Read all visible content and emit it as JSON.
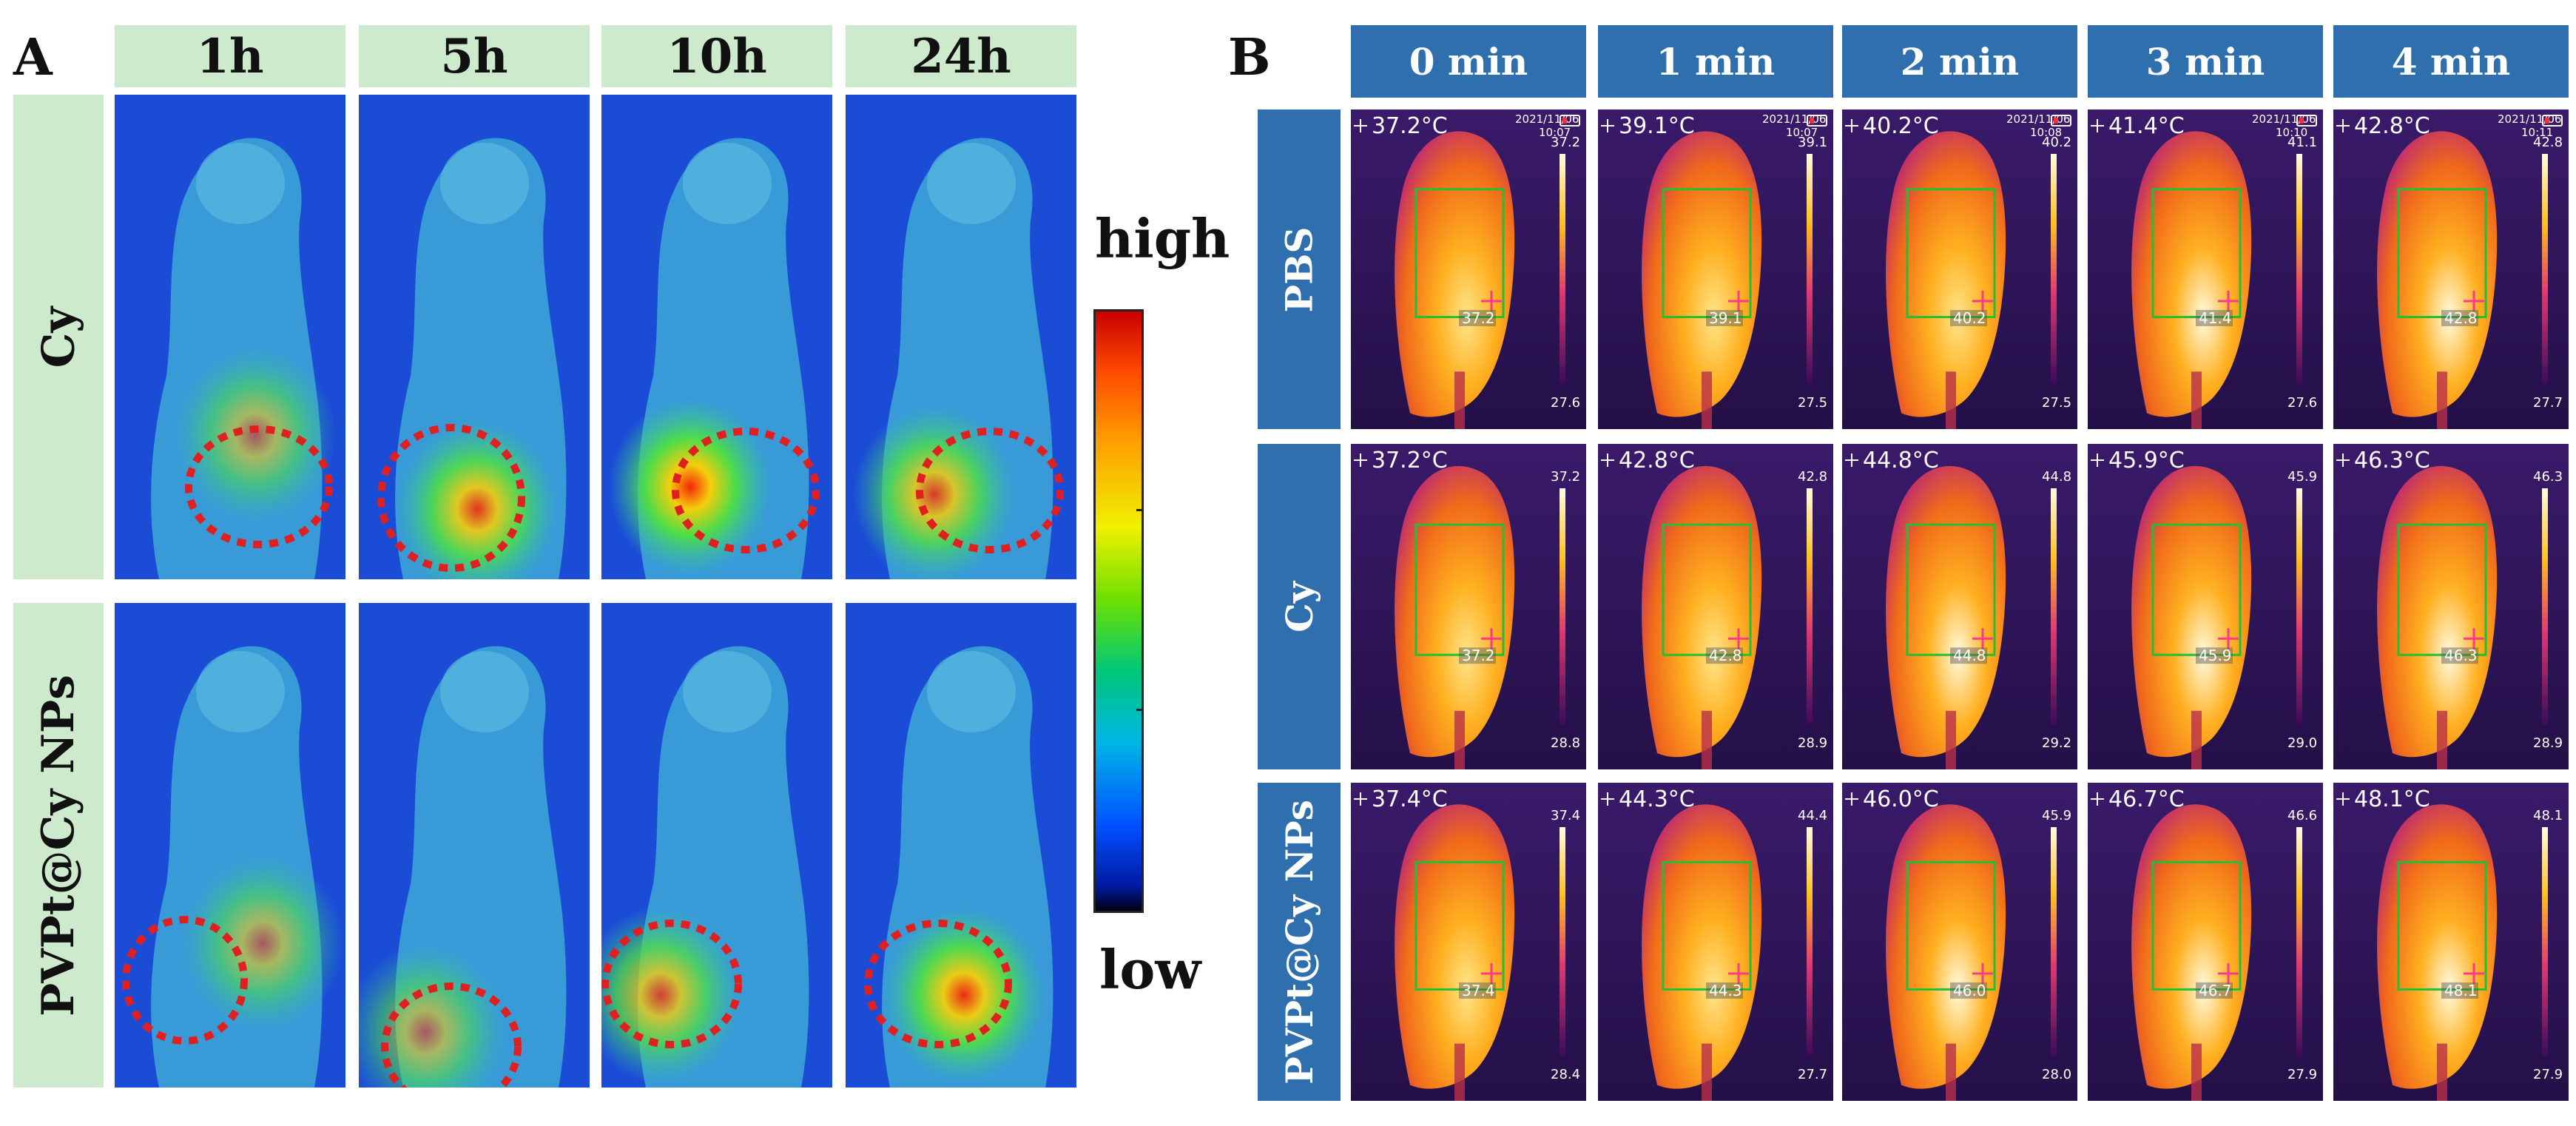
{
  "panel_a": {
    "letter": "A",
    "time_points": [
      "1h",
      "5h",
      "10h",
      "24h"
    ],
    "groups": [
      "Cy",
      "PVPt@Cy NPs"
    ],
    "scale": {
      "high": "high",
      "low": "low"
    }
  },
  "panel_b": {
    "letter": "B",
    "time_points": [
      "0 min",
      "1 min",
      "2 min",
      "3 min",
      "4 min"
    ],
    "groups": [
      {
        "name": "PBS",
        "cells": [
          {
            "readout": "37.2°C",
            "date": "2021/11/06",
            "time": "10:07",
            "max": "37.2",
            "min": "27.6",
            "spot": "37.2"
          },
          {
            "readout": "39.1°C",
            "date": "2021/11/06",
            "time": "10:07",
            "max": "39.1",
            "min": "27.5",
            "spot": "39.1"
          },
          {
            "readout": "40.2°C",
            "date": "2021/11/06",
            "time": "10:08",
            "max": "40.2",
            "min": "27.5",
            "spot": "40.2"
          },
          {
            "readout": "41.4°C",
            "date": "2021/11/06",
            "time": "10:10",
            "max": "41.1",
            "min": "27.6",
            "spot": "41.4"
          },
          {
            "readout": "42.8°C",
            "date": "2021/11/06",
            "time": "10:11",
            "max": "42.8",
            "min": "27.7",
            "spot": "42.8"
          }
        ]
      },
      {
        "name": "Cy",
        "cells": [
          {
            "readout": "37.2°C",
            "max": "37.2",
            "min": "28.8",
            "spot": "37.2"
          },
          {
            "readout": "42.8°C",
            "max": "42.8",
            "min": "28.9",
            "spot": "42.8"
          },
          {
            "readout": "44.8°C",
            "max": "44.8",
            "min": "29.2",
            "spot": "44.8"
          },
          {
            "readout": "45.9°C",
            "max": "45.9",
            "min": "29.0",
            "spot": "45.9"
          },
          {
            "readout": "46.3°C",
            "max": "46.3",
            "min": "28.9",
            "spot": "46.3"
          }
        ]
      },
      {
        "name": "PVPt@Cy NPs",
        "cells": [
          {
            "readout": "37.4°C",
            "max": "37.4",
            "min": "28.4",
            "spot": "37.4"
          },
          {
            "readout": "44.3°C",
            "max": "44.4",
            "min": "27.7",
            "spot": "44.3"
          },
          {
            "readout": "46.0°C",
            "max": "45.9",
            "min": "28.0",
            "spot": "46.0"
          },
          {
            "readout": "46.7°C",
            "max": "46.6",
            "min": "27.9",
            "spot": "46.7"
          },
          {
            "readout": "48.1°C",
            "max": "48.1",
            "min": "27.9",
            "spot": "48.1"
          }
        ]
      }
    ]
  },
  "colors": {
    "panel_a_header_bg": "#cdeacd",
    "panel_b_header_bg": "#2f6fae",
    "fluorescence_bg": "#1a4cd6",
    "thermal_bg": "#2a0f56",
    "tumor_circle": "#e02020",
    "roi_box": "#22c033"
  }
}
